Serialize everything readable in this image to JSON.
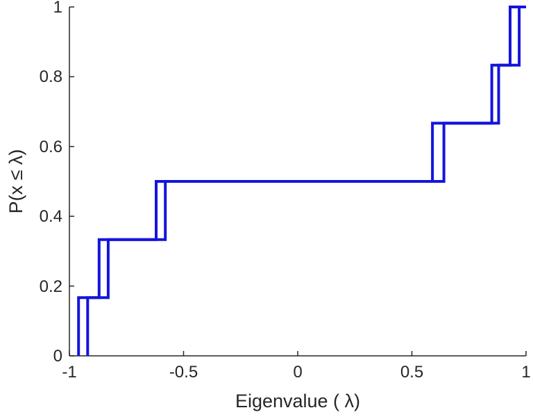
{
  "chart_data": {
    "type": "line",
    "subtype": "empirical-cdf-step",
    "title": "",
    "xlabel": "Eigenvalue ( λ)",
    "ylabel": "P(x ≤ λ)",
    "xlim": [
      -1,
      1
    ],
    "ylim": [
      0,
      1
    ],
    "x_ticks": [
      "-1",
      "-0.5",
      "0",
      "0.5",
      "1"
    ],
    "x_tick_values": [
      -1,
      -0.5,
      0,
      0.5,
      1
    ],
    "y_ticks": [
      "0",
      "0.2",
      "0.4",
      "0.6",
      "0.8",
      "1"
    ],
    "y_tick_values": [
      0,
      0.2,
      0.4,
      0.6,
      0.8,
      1
    ],
    "grid": false,
    "legend": false,
    "background_color": "#ffffff",
    "axis_color": "#262626",
    "line_color": "#1414dd",
    "line_width": 4,
    "series": [
      {
        "name": "ecdf-left-staircase",
        "x": [
          -0.96,
          -0.87,
          -0.62,
          0.59,
          0.85,
          0.93
        ],
        "y": [
          0.1667,
          0.3333,
          0.5,
          0.6667,
          0.8333,
          1
        ]
      },
      {
        "name": "ecdf-right-staircase",
        "x": [
          -0.92,
          -0.83,
          -0.58,
          0.64,
          0.88,
          0.97
        ],
        "y": [
          0.1667,
          0.3333,
          0.5,
          0.6667,
          0.8333,
          1
        ]
      }
    ]
  }
}
